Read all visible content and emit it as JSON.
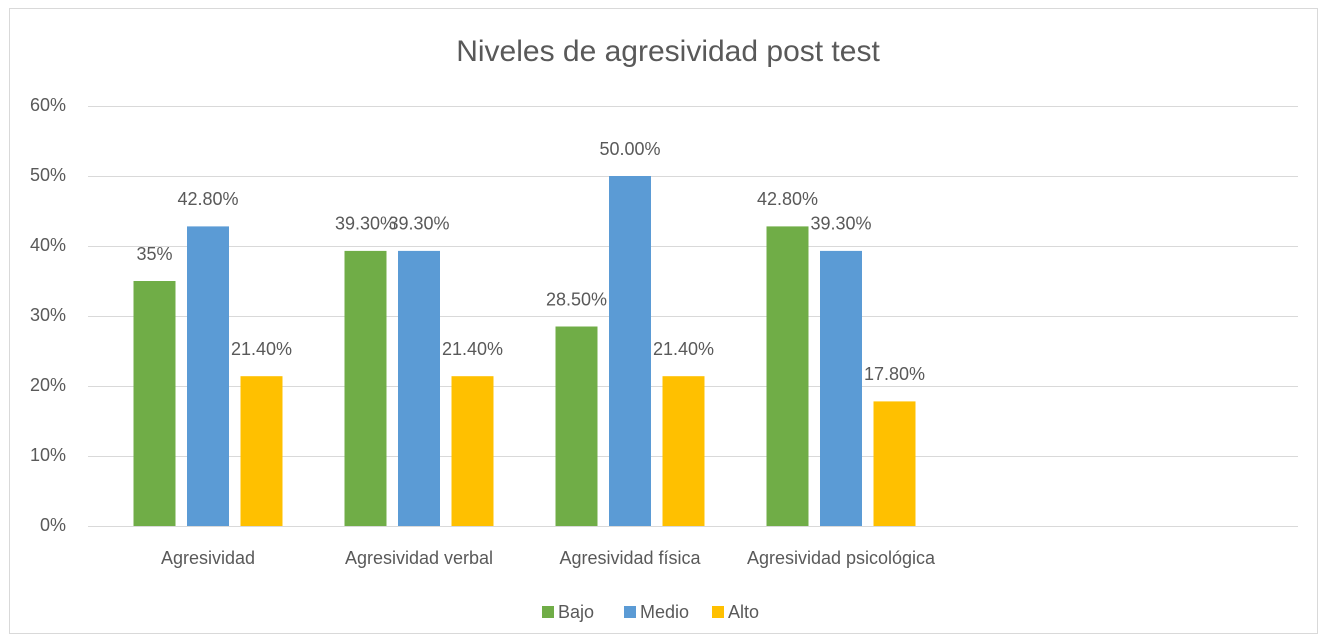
{
  "chart_data": {
    "type": "bar",
    "title": "Niveles de agresividad post test",
    "categories": [
      "Agresividad",
      "Agresividad verbal",
      "Agresividad física",
      "Agresividad psicológica"
    ],
    "series": [
      {
        "name": "Bajo",
        "color": "#70ad47",
        "values": [
          35,
          39.3,
          28.5,
          42.8
        ],
        "value_labels": [
          "35%",
          "39.30%",
          "28.50%",
          "42.80%"
        ]
      },
      {
        "name": "Medio",
        "color": "#5b9bd5",
        "values": [
          42.8,
          39.3,
          50,
          39.3
        ],
        "value_labels": [
          "42.80%",
          "39.30%",
          "50.00%",
          "39.30%"
        ]
      },
      {
        "name": "Alto",
        "color": "#ffc000",
        "values": [
          21.4,
          21.4,
          21.4,
          17.8
        ],
        "value_labels": [
          "21.40%",
          "21.40%",
          "21.40%",
          "17.80%"
        ]
      }
    ],
    "ylim": [
      0,
      60
    ],
    "yticks": [
      {
        "value": 0,
        "label": "0%"
      },
      {
        "value": 10,
        "label": "10%"
      },
      {
        "value": 20,
        "label": "20%"
      },
      {
        "value": 30,
        "label": "30%"
      },
      {
        "value": 40,
        "label": "40%"
      },
      {
        "value": 50,
        "label": "50%"
      },
      {
        "value": 60,
        "label": "60%"
      }
    ],
    "grid": true,
    "legend": "bottom"
  }
}
